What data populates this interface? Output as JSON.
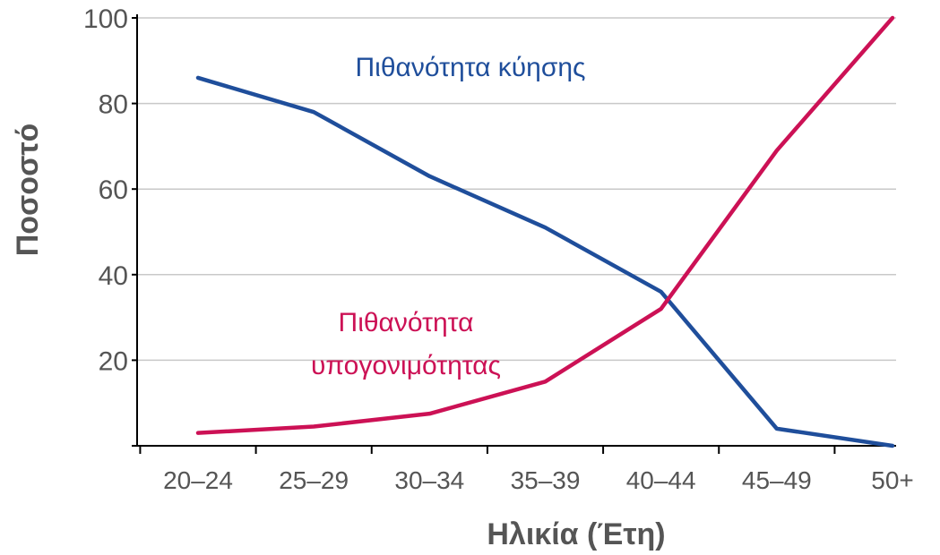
{
  "chart_data": {
    "type": "line",
    "title": "",
    "xlabel": "Ηλικία (Έτη)",
    "ylabel": "Ποσοστό",
    "categories": [
      "20–24",
      "25–29",
      "30–34",
      "35–39",
      "40–44",
      "45–49",
      "50+"
    ],
    "ylim": [
      0,
      100
    ],
    "yticks": [
      20,
      40,
      60,
      80,
      100
    ],
    "grid": true,
    "series": [
      {
        "name": "Πιθανότητα κύησης",
        "color": "#1f4e9b",
        "values": [
          86,
          78,
          63,
          51,
          36,
          4,
          0
        ]
      },
      {
        "name": "Πιθανότητα υπογονιμότητας",
        "name_lines": [
          "Πιθανότητα",
          "υπογονιμότητας"
        ],
        "color": "#cc1155",
        "values": [
          3,
          4.5,
          7.5,
          15,
          32,
          69,
          100
        ]
      }
    ]
  },
  "colors": {
    "axis": "#000000",
    "grid": "#c8c8c8",
    "text": "#555555"
  }
}
